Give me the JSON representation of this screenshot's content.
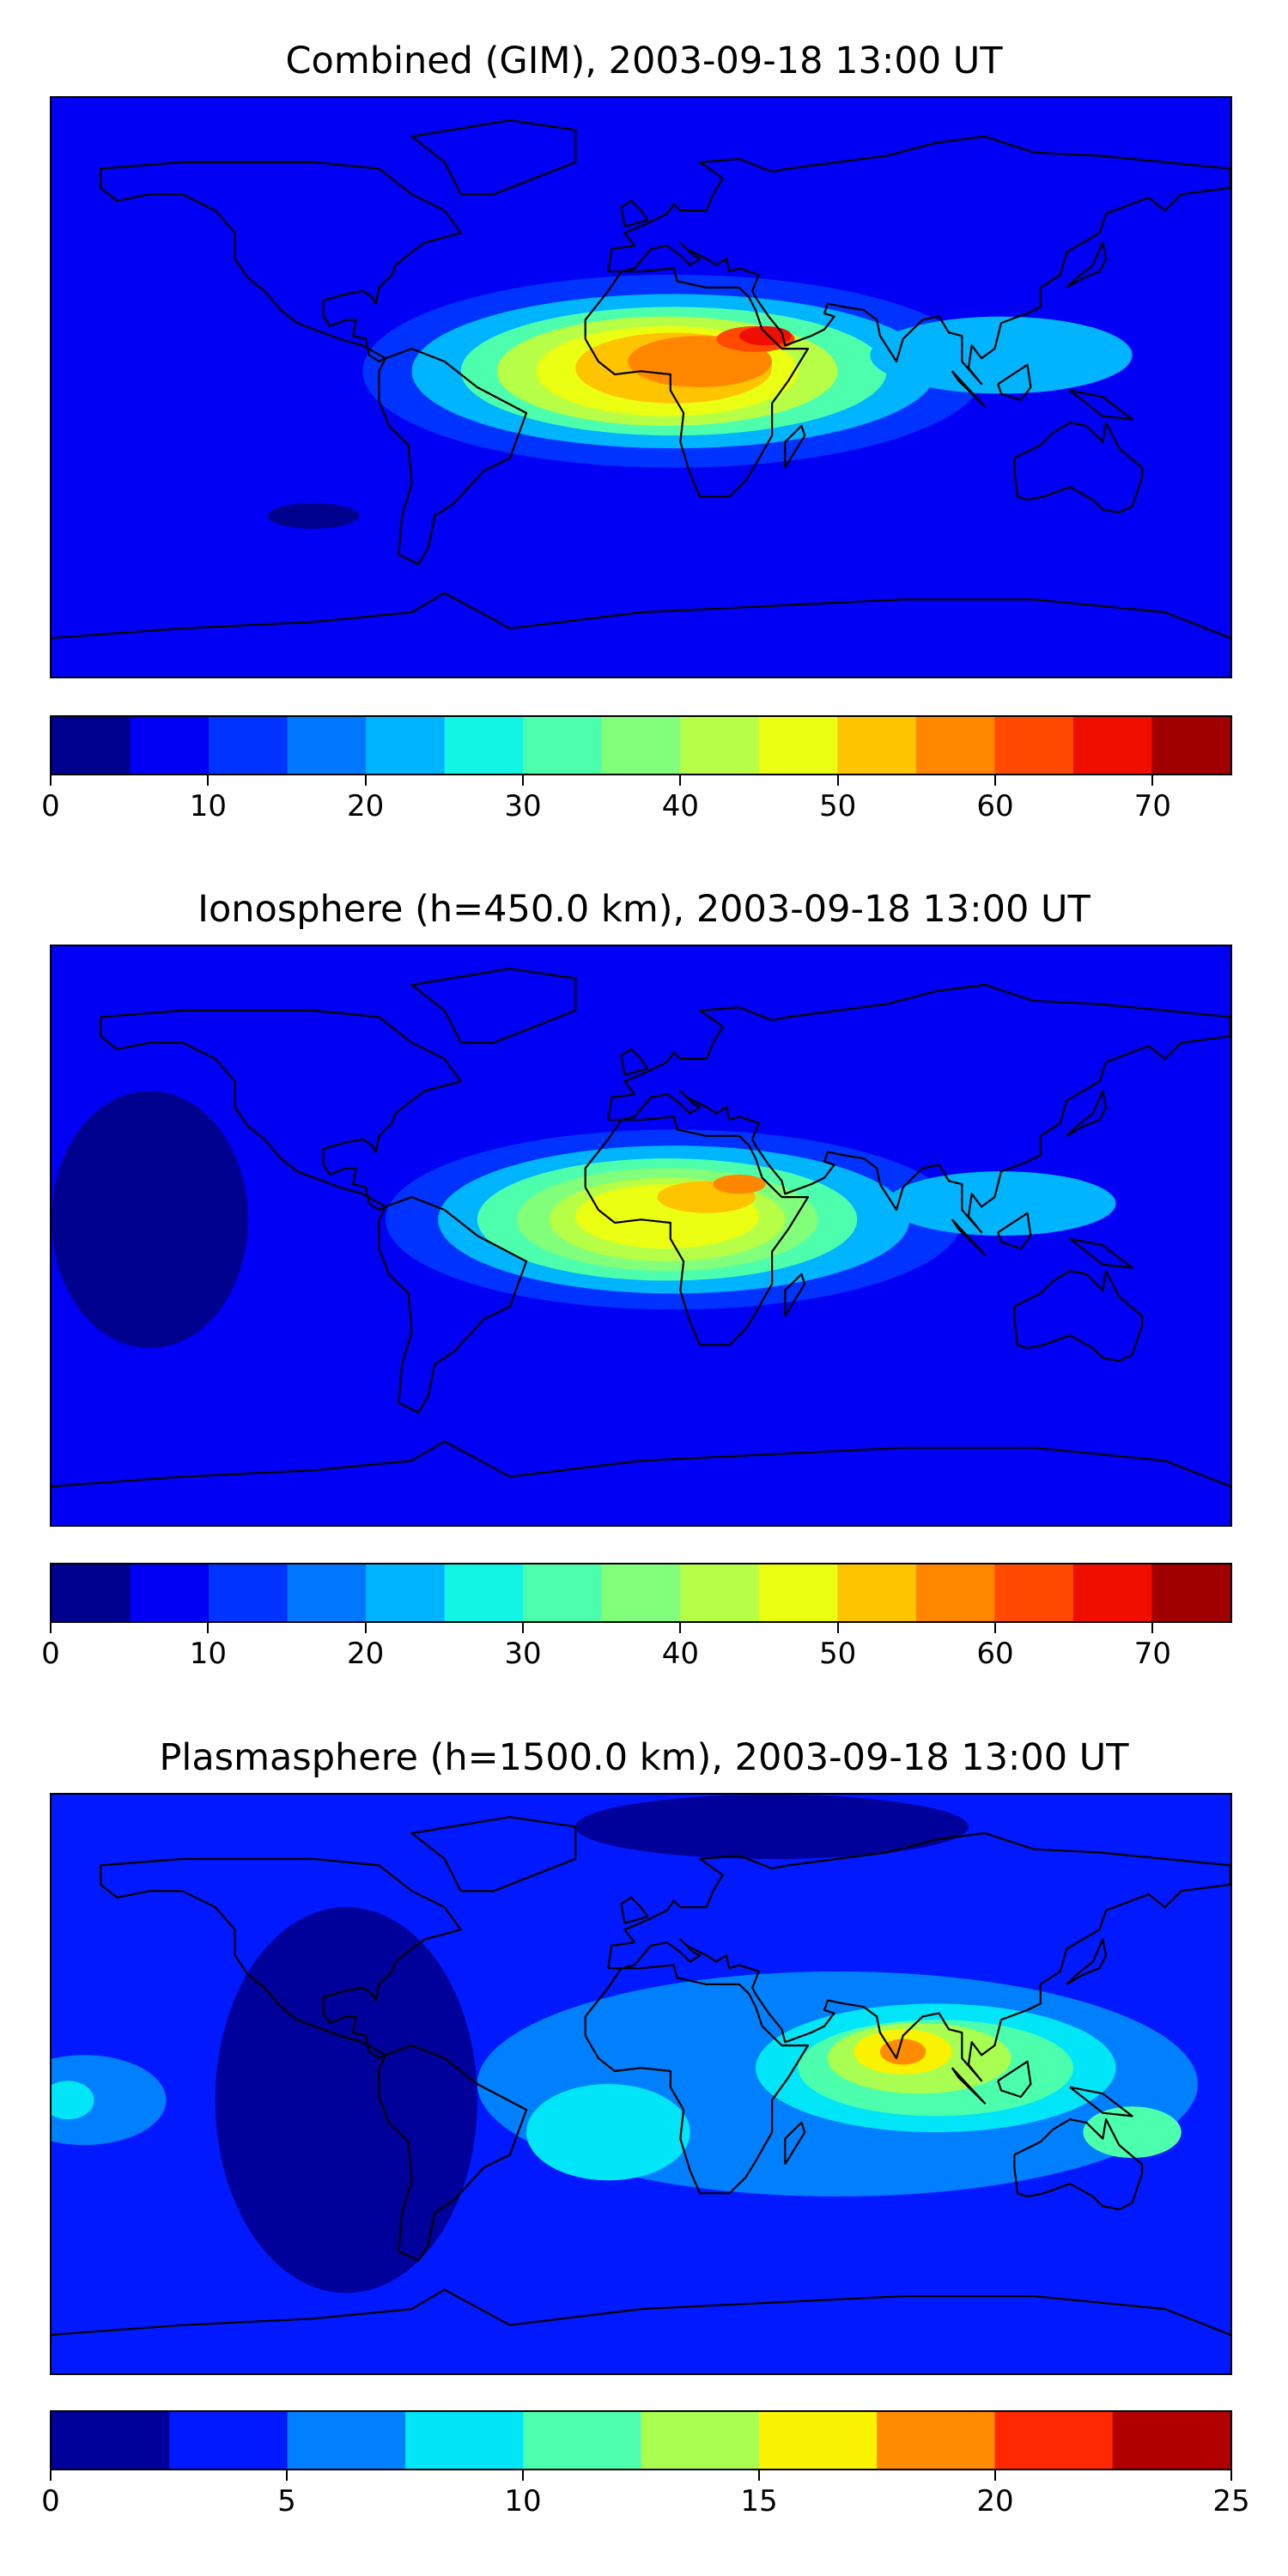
{
  "chart_data": [
    {
      "type": "heatmap",
      "title": "Combined (GIM), 2003-09-18 13:00 UT",
      "colorbar": {
        "range": [
          0,
          75
        ],
        "levels": [
          0,
          5,
          10,
          15,
          20,
          25,
          30,
          35,
          40,
          45,
          50,
          55,
          60,
          65,
          70,
          75
        ],
        "colors": [
          "#00008f",
          "#0000f5",
          "#0033ff",
          "#0077ff",
          "#00b4ff",
          "#12f4e4",
          "#4dffad",
          "#82ff7b",
          "#b7ff47",
          "#ebff12",
          "#ffc400",
          "#ff8700",
          "#ff4a00",
          "#f00e00",
          "#a10000"
        ],
        "ticks": [
          0,
          10,
          20,
          30,
          40,
          50,
          60,
          70
        ],
        "tick_labels": [
          "0",
          "10",
          "20",
          "30",
          "40",
          "50",
          "60",
          "70"
        ]
      },
      "field": {
        "base_level": 1,
        "blobs": [
          {
            "lon": 10,
            "lat": 5,
            "rlon": 95,
            "rlat": 30,
            "level": 2
          },
          {
            "lon": 10,
            "lat": 5,
            "rlon": 80,
            "rlat": 24,
            "level": 4
          },
          {
            "lon": 10,
            "lat": 5,
            "rlon": 65,
            "rlat": 20,
            "level": 6
          },
          {
            "lon": 8,
            "lat": 5,
            "rlon": 52,
            "rlat": 17,
            "level": 8
          },
          {
            "lon": 8,
            "lat": 5,
            "rlon": 40,
            "rlat": 14,
            "level": 9
          },
          {
            "lon": 10,
            "lat": 6,
            "rlon": 30,
            "rlat": 11,
            "level": 10
          },
          {
            "lon": 18,
            "lat": 8,
            "rlon": 22,
            "rlat": 8,
            "level": 11
          },
          {
            "lon": 35,
            "lat": 15,
            "rlon": 12,
            "rlat": 4,
            "level": 12
          },
          {
            "lon": 38,
            "lat": 16,
            "rlon": 8,
            "rlat": 3,
            "level": 13
          },
          {
            "lon": 110,
            "lat": 10,
            "rlon": 40,
            "rlat": 12,
            "level": 4
          },
          {
            "lon": -100,
            "lat": -40,
            "rlon": 14,
            "rlat": 4,
            "level": 0
          }
        ]
      }
    },
    {
      "type": "heatmap",
      "title": "Ionosphere  (h=450.0 km), 2003-09-18 13:00 UT",
      "colorbar": {
        "range": [
          0,
          75
        ],
        "levels": [
          0,
          5,
          10,
          15,
          20,
          25,
          30,
          35,
          40,
          45,
          50,
          55,
          60,
          65,
          70,
          75
        ],
        "colors": [
          "#00008f",
          "#0000f5",
          "#0033ff",
          "#0077ff",
          "#00b4ff",
          "#12f4e4",
          "#4dffad",
          "#82ff7b",
          "#b7ff47",
          "#ebff12",
          "#ffc400",
          "#ff8700",
          "#ff4a00",
          "#f00e00",
          "#a10000"
        ],
        "ticks": [
          0,
          10,
          20,
          30,
          40,
          50,
          60,
          70
        ],
        "tick_labels": [
          "0",
          "10",
          "20",
          "30",
          "40",
          "50",
          "60",
          "70"
        ]
      },
      "field": {
        "base_level": 1,
        "blobs": [
          {
            "lon": -150,
            "lat": 5,
            "rlon": 30,
            "rlat": 40,
            "level": 0
          },
          {
            "lon": 10,
            "lat": 5,
            "rlon": 88,
            "rlat": 28,
            "level": 2
          },
          {
            "lon": 10,
            "lat": 5,
            "rlon": 72,
            "rlat": 23,
            "level": 4
          },
          {
            "lon": 8,
            "lat": 5,
            "rlon": 58,
            "rlat": 19,
            "level": 6
          },
          {
            "lon": 8,
            "lat": 5,
            "rlon": 46,
            "rlat": 16,
            "level": 7
          },
          {
            "lon": 8,
            "lat": 5,
            "rlon": 36,
            "rlat": 13,
            "level": 8
          },
          {
            "lon": 8,
            "lat": 6,
            "rlon": 28,
            "rlat": 10,
            "level": 9
          },
          {
            "lon": 20,
            "lat": 12,
            "rlon": 15,
            "rlat": 5,
            "level": 10
          },
          {
            "lon": 30,
            "lat": 16,
            "rlon": 8,
            "rlat": 3,
            "level": 11
          },
          {
            "lon": 110,
            "lat": 10,
            "rlon": 35,
            "rlat": 10,
            "level": 4
          }
        ]
      }
    },
    {
      "type": "heatmap",
      "title": "Plasmasphere (h=1500.0 km), 2003-09-18 13:00 UT",
      "colorbar": {
        "range": [
          0,
          25
        ],
        "levels": [
          0,
          2.5,
          5,
          7.5,
          10,
          12.5,
          15,
          17.5,
          20,
          22.5,
          25
        ],
        "colors": [
          "#00009a",
          "#0019ff",
          "#0080ff",
          "#00e5f8",
          "#4bffad",
          "#a8ff51",
          "#f9f200",
          "#ff8c00",
          "#ff2800",
          "#b20000"
        ],
        "ticks": [
          0,
          5,
          10,
          15,
          20,
          25
        ],
        "tick_labels": [
          "0",
          "5",
          "10",
          "15",
          "20",
          "25"
        ]
      },
      "field": {
        "base_level": 1,
        "blobs": [
          {
            "lon": -90,
            "lat": -5,
            "rlon": 40,
            "rlat": 60,
            "level": 0
          },
          {
            "lon": 40,
            "lat": 80,
            "rlon": 60,
            "rlat": 10,
            "level": 0
          },
          {
            "lon": 60,
            "lat": 0,
            "rlon": 110,
            "rlat": 35,
            "level": 2
          },
          {
            "lon": 90,
            "lat": 5,
            "rlon": 55,
            "rlat": 20,
            "level": 3
          },
          {
            "lon": 90,
            "lat": 5,
            "rlon": 42,
            "rlat": 15,
            "level": 4
          },
          {
            "lon": 85,
            "lat": 8,
            "rlon": 28,
            "rlat": 11,
            "level": 5
          },
          {
            "lon": 80,
            "lat": 10,
            "rlon": 15,
            "rlat": 7,
            "level": 6
          },
          {
            "lon": 80,
            "lat": 10,
            "rlon": 7,
            "rlat": 4,
            "level": 7
          },
          {
            "lon": -170,
            "lat": -5,
            "rlon": 25,
            "rlat": 14,
            "level": 2
          },
          {
            "lon": -175,
            "lat": -5,
            "rlon": 8,
            "rlat": 6,
            "level": 3
          },
          {
            "lon": -10,
            "lat": -15,
            "rlon": 25,
            "rlat": 15,
            "level": 3
          },
          {
            "lon": 150,
            "lat": -15,
            "rlon": 15,
            "rlat": 8,
            "level": 4
          }
        ]
      }
    }
  ],
  "coastlines": [
    [
      [
        -165,
        68
      ],
      [
        -140,
        70
      ],
      [
        -125,
        70
      ],
      [
        -100,
        70
      ],
      [
        -80,
        68
      ],
      [
        -70,
        60
      ],
      [
        -60,
        55
      ],
      [
        -55,
        48
      ],
      [
        -66,
        45
      ],
      [
        -70,
        42
      ],
      [
        -75,
        38
      ],
      [
        -76,
        35
      ],
      [
        -80,
        31
      ],
      [
        -81,
        26
      ],
      [
        -82,
        28
      ],
      [
        -85,
        30
      ],
      [
        -90,
        29
      ],
      [
        -97,
        27
      ],
      [
        -97,
        22
      ],
      [
        -95,
        19
      ],
      [
        -90,
        21
      ],
      [
        -87,
        21
      ],
      [
        -88,
        16
      ],
      [
        -84,
        15
      ],
      [
        -83,
        10
      ],
      [
        -80,
        8
      ],
      [
        -78,
        9
      ],
      [
        -80,
        5
      ],
      [
        -80,
        -4
      ],
      [
        -77,
        -12
      ],
      [
        -71,
        -18
      ],
      [
        -70,
        -30
      ],
      [
        -73,
        -40
      ],
      [
        -74,
        -52
      ],
      [
        -68,
        -55
      ],
      [
        -65,
        -50
      ],
      [
        -63,
        -40
      ],
      [
        -57,
        -36
      ],
      [
        -48,
        -26
      ],
      [
        -40,
        -22
      ],
      [
        -35,
        -8
      ],
      [
        -50,
        0
      ],
      [
        -60,
        8
      ],
      [
        -70,
        12
      ],
      [
        -78,
        9
      ],
      [
        -85,
        13
      ],
      [
        -92,
        15
      ],
      [
        -105,
        20
      ],
      [
        -110,
        24
      ],
      [
        -115,
        30
      ],
      [
        -120,
        34
      ],
      [
        -124,
        40
      ],
      [
        -124,
        48
      ],
      [
        -130,
        55
      ],
      [
        -140,
        60
      ],
      [
        -150,
        60
      ],
      [
        -160,
        58
      ],
      [
        -165,
        62
      ],
      [
        -165,
        68
      ]
    ],
    [
      [
        -17,
        15
      ],
      [
        -17,
        21
      ],
      [
        -10,
        30
      ],
      [
        -6,
        36
      ],
      [
        0,
        36
      ],
      [
        10,
        37
      ],
      [
        11,
        33
      ],
      [
        20,
        31
      ],
      [
        30,
        31
      ],
      [
        33,
        28
      ],
      [
        35,
        24
      ],
      [
        37,
        18
      ],
      [
        43,
        12
      ],
      [
        51,
        12
      ],
      [
        45,
        2
      ],
      [
        40,
        -5
      ],
      [
        40,
        -15
      ],
      [
        35,
        -24
      ],
      [
        32,
        -29
      ],
      [
        27,
        -34
      ],
      [
        18,
        -34
      ],
      [
        15,
        -27
      ],
      [
        12,
        -17
      ],
      [
        13,
        -8
      ],
      [
        9,
        -1
      ],
      [
        9,
        4
      ],
      [
        0,
        5
      ],
      [
        -8,
        4
      ],
      [
        -13,
        8
      ],
      [
        -17,
        15
      ]
    ],
    [
      [
        -10,
        36
      ],
      [
        -9,
        43
      ],
      [
        -2,
        44
      ],
      [
        -5,
        48
      ],
      [
        2,
        51
      ],
      [
        8,
        54
      ],
      [
        10,
        57
      ],
      [
        12,
        55
      ],
      [
        20,
        55
      ],
      [
        22,
        60
      ],
      [
        25,
        65
      ],
      [
        18,
        70
      ],
      [
        30,
        71
      ],
      [
        40,
        67
      ],
      [
        45,
        68
      ],
      [
        60,
        70
      ],
      [
        75,
        72
      ],
      [
        90,
        76
      ],
      [
        105,
        78
      ],
      [
        120,
        73
      ],
      [
        140,
        72
      ],
      [
        160,
        70
      ],
      [
        180,
        68
      ],
      [
        180,
        62
      ],
      [
        165,
        60
      ],
      [
        160,
        55
      ],
      [
        155,
        59
      ],
      [
        142,
        54
      ],
      [
        140,
        48
      ],
      [
        130,
        42
      ],
      [
        128,
        35
      ],
      [
        122,
        31
      ],
      [
        122,
        25
      ],
      [
        118,
        23
      ],
      [
        110,
        20
      ],
      [
        108,
        12
      ],
      [
        104,
        9
      ],
      [
        101,
        13
      ],
      [
        100,
        6
      ],
      [
        104,
        1
      ],
      [
        98,
        8
      ],
      [
        98,
        16
      ],
      [
        94,
        17
      ],
      [
        91,
        22
      ],
      [
        86,
        21
      ],
      [
        80,
        15
      ],
      [
        78,
        8
      ],
      [
        73,
        16
      ],
      [
        72,
        21
      ],
      [
        68,
        24
      ],
      [
        62,
        25
      ],
      [
        57,
        26
      ],
      [
        56,
        23
      ],
      [
        59,
        22
      ],
      [
        56,
        18
      ],
      [
        52,
        16
      ],
      [
        44,
        13
      ],
      [
        43,
        17
      ],
      [
        39,
        22
      ],
      [
        35,
        28
      ],
      [
        34,
        30
      ],
      [
        36,
        35
      ],
      [
        30,
        37
      ],
      [
        27,
        36
      ],
      [
        26,
        40
      ],
      [
        23,
        38
      ],
      [
        20,
        40
      ],
      [
        14,
        43
      ],
      [
        12,
        45
      ],
      [
        16,
        41
      ],
      [
        18,
        40
      ],
      [
        15,
        38
      ],
      [
        12,
        41
      ],
      [
        8,
        44
      ],
      [
        3,
        43
      ],
      [
        -2,
        37
      ],
      [
        -6,
        36
      ],
      [
        -10,
        36
      ]
    ],
    [
      [
        114,
        -22
      ],
      [
        114,
        -26
      ],
      [
        115,
        -34
      ],
      [
        118,
        -35
      ],
      [
        123,
        -34
      ],
      [
        131,
        -31
      ],
      [
        138,
        -35
      ],
      [
        141,
        -38
      ],
      [
        146,
        -39
      ],
      [
        150,
        -37
      ],
      [
        153,
        -28
      ],
      [
        153,
        -25
      ],
      [
        146,
        -19
      ],
      [
        142,
        -11
      ],
      [
        141,
        -17
      ],
      [
        136,
        -12
      ],
      [
        131,
        -11
      ],
      [
        126,
        -14
      ],
      [
        122,
        -18
      ],
      [
        114,
        -22
      ]
    ],
    [
      [
        -55,
        60
      ],
      [
        -45,
        60
      ],
      [
        -20,
        70
      ],
      [
        -20,
        80
      ],
      [
        -40,
        83
      ],
      [
        -70,
        78
      ],
      [
        -60,
        70
      ],
      [
        -55,
        60
      ]
    ],
    [
      [
        -5,
        50
      ],
      [
        2,
        52
      ],
      [
        0,
        55
      ],
      [
        -3,
        58
      ],
      [
        -6,
        56
      ],
      [
        -5,
        50
      ]
    ],
    [
      [
        44,
        -25
      ],
      [
        50,
        -15
      ],
      [
        49,
        -12
      ],
      [
        44,
        -17
      ],
      [
        44,
        -25
      ]
    ],
    [
      [
        130,
        31
      ],
      [
        135,
        34
      ],
      [
        140,
        36
      ],
      [
        142,
        40
      ],
      [
        141,
        45
      ],
      [
        138,
        38
      ],
      [
        133,
        34
      ],
      [
        130,
        31
      ]
    ],
    [
      [
        95,
        5
      ],
      [
        105,
        -6
      ],
      [
        103,
        -4
      ],
      [
        97,
        2
      ],
      [
        95,
        5
      ]
    ],
    [
      [
        109,
        1
      ],
      [
        118,
        7
      ],
      [
        119,
        0
      ],
      [
        116,
        -4
      ],
      [
        110,
        -2
      ],
      [
        109,
        1
      ]
    ],
    [
      [
        131,
        -1
      ],
      [
        141,
        -3
      ],
      [
        150,
        -10
      ],
      [
        141,
        -9
      ],
      [
        131,
        -1
      ]
    ],
    [
      [
        -180,
        -78
      ],
      [
        -140,
        -75
      ],
      [
        -100,
        -73
      ],
      [
        -70,
        -70
      ],
      [
        -60,
        -64
      ],
      [
        -40,
        -75
      ],
      [
        0,
        -70
      ],
      [
        40,
        -68
      ],
      [
        80,
        -66
      ],
      [
        120,
        -66
      ],
      [
        160,
        -70
      ],
      [
        180,
        -78
      ]
    ]
  ]
}
